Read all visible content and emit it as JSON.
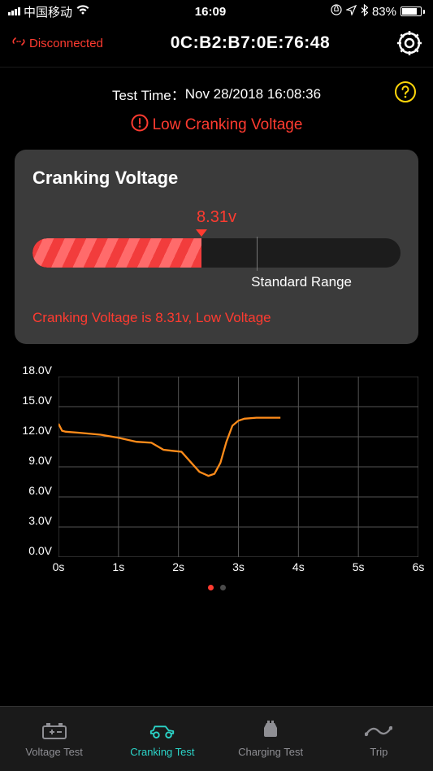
{
  "status_bar": {
    "carrier": "中国移动",
    "time": "16:09",
    "battery_text": "83%",
    "battery_pct": 83
  },
  "header": {
    "connection_label": "Disconnected",
    "connection_color": "#ff3b30",
    "mac": "0C:B2:B7:0E:76:48"
  },
  "test_time": {
    "label": "Test Time：",
    "value": "Nov 28/2018 16:08:36",
    "help_color": "#ffd60a"
  },
  "warning": {
    "text": "Low Cranking Voltage",
    "color": "#ff3b30"
  },
  "card": {
    "title": "Cranking Voltage",
    "value_label": "8.31v",
    "value_color": "#ff3b30",
    "fill_pct": 46,
    "range_tick_pct": 61,
    "range_label": "Standard Range",
    "message": "Cranking Voltage is 8.31v, Low Voltage",
    "message_color": "#ff3b30"
  },
  "chart": {
    "type": "line",
    "xlim": [
      0,
      6
    ],
    "ylim": [
      0,
      18
    ],
    "x_ticks": [
      0,
      1,
      2,
      3,
      4,
      5,
      6
    ],
    "x_tick_labels": [
      "0s",
      "1s",
      "2s",
      "3s",
      "4s",
      "5s",
      "6s"
    ],
    "y_ticks": [
      0,
      3,
      6,
      9,
      12,
      15,
      18
    ],
    "y_tick_labels": [
      "0.0V",
      "3.0V",
      "6.0V",
      "9.0V",
      "12.0V",
      "15.0V",
      "18.0V"
    ],
    "series_color": "#ff8c1a",
    "grid_color": "#555555",
    "background_color": "#000000",
    "points": [
      [
        0.0,
        13.3
      ],
      [
        0.06,
        12.6
      ],
      [
        0.12,
        12.5
      ],
      [
        0.35,
        12.4
      ],
      [
        0.7,
        12.2
      ],
      [
        1.0,
        11.9
      ],
      [
        1.3,
        11.5
      ],
      [
        1.55,
        11.4
      ],
      [
        1.75,
        10.7
      ],
      [
        1.9,
        10.6
      ],
      [
        2.05,
        10.5
      ],
      [
        2.2,
        9.5
      ],
      [
        2.35,
        8.5
      ],
      [
        2.5,
        8.1
      ],
      [
        2.6,
        8.3
      ],
      [
        2.7,
        9.4
      ],
      [
        2.8,
        11.5
      ],
      [
        2.9,
        13.1
      ],
      [
        3.0,
        13.6
      ],
      [
        3.1,
        13.8
      ],
      [
        3.3,
        13.9
      ],
      [
        3.6,
        13.9
      ],
      [
        3.7,
        13.9
      ]
    ]
  },
  "page_indicator": {
    "active_color": "#ff3b30",
    "inactive_color": "#4a4a4a",
    "count": 2,
    "active": 0
  },
  "tabs": {
    "active_index": 1,
    "active_color": "#2bd4c8",
    "inactive_color": "#8e8e93",
    "items": [
      {
        "label": "Voltage Test"
      },
      {
        "label": "Cranking Test"
      },
      {
        "label": "Charging Test"
      },
      {
        "label": "Trip"
      }
    ]
  }
}
